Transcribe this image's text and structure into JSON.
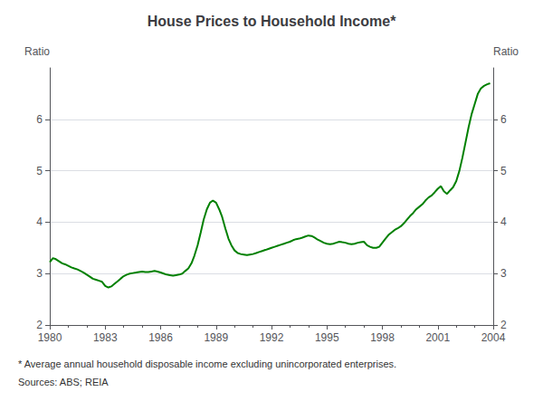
{
  "chart_data": {
    "type": "line",
    "title": "House Prices to Household Income*",
    "ylabel": "Ratio",
    "y2label": "Ratio",
    "footnote": [
      "* Average annual household disposable income excluding unincorporated enterprises.",
      "Sources: ABS; REIA"
    ],
    "xlim": [
      1980,
      2004
    ],
    "xticks": [
      1980,
      1983,
      1986,
      1989,
      1992,
      1995,
      1998,
      2001,
      2004
    ],
    "ylim": [
      2,
      7
    ],
    "yticks": [
      2,
      3,
      4,
      5,
      6
    ],
    "y2lim": [
      2,
      7
    ],
    "y2ticks": [
      2,
      3,
      4,
      5,
      6
    ],
    "grid": true,
    "color": "#008000",
    "x": [
      1980.0,
      1980.17,
      1980.33,
      1980.5,
      1980.67,
      1980.83,
      1981.0,
      1981.17,
      1981.33,
      1981.5,
      1981.67,
      1981.83,
      1982.0,
      1982.17,
      1982.33,
      1982.5,
      1982.67,
      1982.83,
      1983.0,
      1983.17,
      1983.33,
      1983.5,
      1983.67,
      1983.83,
      1984.0,
      1984.17,
      1984.33,
      1984.5,
      1984.67,
      1984.83,
      1985.0,
      1985.17,
      1985.33,
      1985.5,
      1985.67,
      1985.83,
      1986.0,
      1986.17,
      1986.33,
      1986.5,
      1986.67,
      1986.83,
      1987.0,
      1987.17,
      1987.33,
      1987.5,
      1987.67,
      1987.83,
      1988.0,
      1988.17,
      1988.33,
      1988.5,
      1988.67,
      1988.83,
      1989.0,
      1989.17,
      1989.33,
      1989.5,
      1989.67,
      1989.83,
      1990.0,
      1990.17,
      1990.33,
      1990.5,
      1990.67,
      1990.83,
      1991.0,
      1991.17,
      1991.33,
      1991.5,
      1991.67,
      1991.83,
      1992.0,
      1992.17,
      1992.33,
      1992.5,
      1992.67,
      1992.83,
      1993.0,
      1993.17,
      1993.33,
      1993.5,
      1993.67,
      1993.83,
      1994.0,
      1994.17,
      1994.33,
      1994.5,
      1994.67,
      1994.83,
      1995.0,
      1995.17,
      1995.33,
      1995.5,
      1995.67,
      1995.83,
      1996.0,
      1996.17,
      1996.33,
      1996.5,
      1996.67,
      1996.83,
      1997.0,
      1997.17,
      1997.33,
      1997.5,
      1997.67,
      1997.83,
      1998.0,
      1998.17,
      1998.33,
      1998.5,
      1998.67,
      1998.83,
      1999.0,
      1999.17,
      1999.33,
      1999.5,
      1999.67,
      1999.83,
      2000.0,
      2000.17,
      2000.33,
      2000.5,
      2000.67,
      2000.83,
      2001.0,
      2001.17,
      2001.33,
      2001.5,
      2001.67,
      2001.83,
      2002.0,
      2002.17,
      2002.33,
      2002.5,
      2002.67,
      2002.83,
      2003.0,
      2003.17,
      2003.33,
      2003.5,
      2003.67,
      2003.83
    ],
    "values": [
      3.22,
      3.3,
      3.28,
      3.24,
      3.2,
      3.18,
      3.15,
      3.12,
      3.1,
      3.08,
      3.05,
      3.02,
      2.98,
      2.94,
      2.9,
      2.88,
      2.86,
      2.84,
      2.76,
      2.73,
      2.75,
      2.8,
      2.85,
      2.9,
      2.95,
      2.98,
      3.0,
      3.01,
      3.02,
      3.03,
      3.04,
      3.03,
      3.03,
      3.04,
      3.05,
      3.04,
      3.02,
      3.0,
      2.98,
      2.97,
      2.96,
      2.97,
      2.98,
      3.0,
      3.05,
      3.1,
      3.2,
      3.35,
      3.55,
      3.8,
      4.05,
      4.25,
      4.38,
      4.42,
      4.38,
      4.25,
      4.1,
      3.88,
      3.68,
      3.55,
      3.45,
      3.4,
      3.38,
      3.37,
      3.36,
      3.37,
      3.38,
      3.4,
      3.42,
      3.44,
      3.46,
      3.48,
      3.5,
      3.52,
      3.54,
      3.56,
      3.58,
      3.6,
      3.62,
      3.65,
      3.67,
      3.68,
      3.7,
      3.72,
      3.74,
      3.73,
      3.7,
      3.66,
      3.63,
      3.6,
      3.58,
      3.57,
      3.58,
      3.6,
      3.62,
      3.61,
      3.6,
      3.58,
      3.57,
      3.58,
      3.6,
      3.61,
      3.62,
      3.55,
      3.52,
      3.5,
      3.5,
      3.52,
      3.6,
      3.68,
      3.75,
      3.8,
      3.85,
      3.88,
      3.92,
      3.98,
      4.05,
      4.12,
      4.18,
      4.25,
      4.3,
      4.35,
      4.42,
      4.48,
      4.52,
      4.58,
      4.65,
      4.7,
      4.6,
      4.55,
      4.62,
      4.68,
      4.8,
      5.0,
      5.25,
      5.55,
      5.85,
      6.1,
      6.3,
      6.5,
      6.6,
      6.65,
      6.68,
      6.7
    ]
  }
}
